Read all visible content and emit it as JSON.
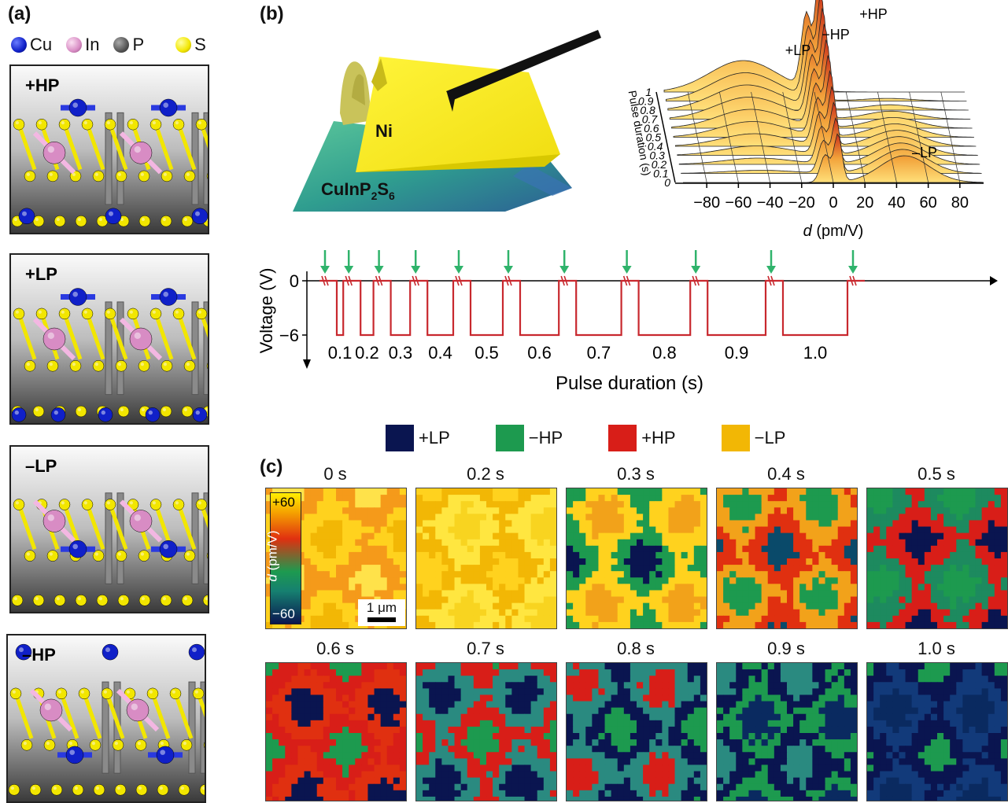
{
  "panel_a": {
    "label": "(a)",
    "legend": [
      {
        "name": "Cu",
        "color": "#1020c8"
      },
      {
        "name": "In",
        "color": "#d88cc4"
      },
      {
        "name": "P",
        "color": "#555555"
      },
      {
        "name": "S",
        "color": "#f2e600"
      }
    ],
    "structures": [
      "+HP",
      "+LP",
      "–LP",
      "–HP"
    ]
  },
  "panel_b": {
    "label": "(b)",
    "tip_labels": {
      "electrode": "Ni",
      "crystal": "CuInP2S6",
      "crystal_main": "CuInP",
      "crystal_sub1": "2",
      "crystal_mid": "S",
      "crystal_sub2": "6"
    },
    "surface_plot": {
      "x_label_italic": "d",
      "x_label_rest": " (pm/V)",
      "x_ticks": [
        "−80",
        "−60",
        "−40",
        "−20",
        "0",
        "20",
        "40",
        "60",
        "80"
      ],
      "y_label": "Pulse duration (s)",
      "y_ticks": [
        "0",
        "0.1",
        "0.2",
        "0.3",
        "0.4",
        "0.5",
        "0.6",
        "0.7",
        "0.8",
        "0.9",
        "1"
      ],
      "peaks": [
        "+HP",
        "−HP",
        "+LP",
        "–LP"
      ]
    },
    "pulse_plot": {
      "y_label": "Voltage (V)",
      "y_ticks": [
        "0",
        "−6"
      ],
      "x_label": "Pulse duration (s)",
      "pulse_durations": [
        "0.1",
        "0.2",
        "0.3",
        "0.4",
        "0.5",
        "0.6",
        "0.7",
        "0.8",
        "0.9",
        "1.0"
      ],
      "line_color": "#c8282e",
      "arrow_color": "#2fb36b"
    }
  },
  "panel_c": {
    "label": "(c)",
    "legend": [
      {
        "name": "+LP",
        "color": "#0a1550"
      },
      {
        "name": "−HP",
        "color": "#1d9a4f"
      },
      {
        "name": "+HP",
        "color": "#d81e18"
      },
      {
        "name": "−LP",
        "color": "#f2b705"
      }
    ],
    "maps": [
      "0 s",
      "0.2 s",
      "0.3 s",
      "0.4 s",
      "0.5 s",
      "0.6 s",
      "0.7 s",
      "0.8 s",
      "0.9 s",
      "1.0 s"
    ],
    "colorbar": {
      "top": "+60",
      "bottom": "−60",
      "label_italic": "d",
      "label_rest": " (pm/V)"
    },
    "scale_bar": "1 μm"
  }
}
